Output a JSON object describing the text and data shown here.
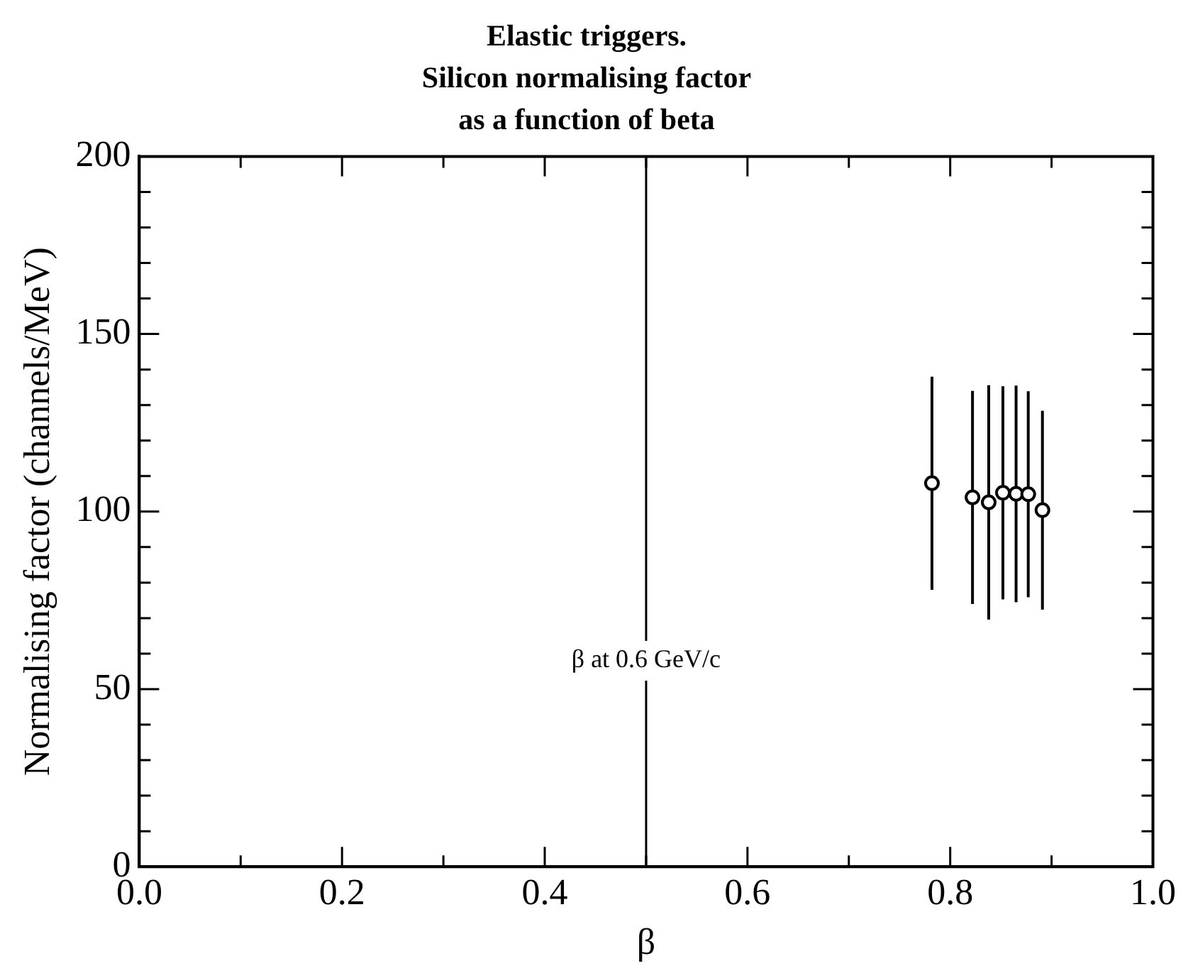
{
  "chart_data": {
    "type": "scatter",
    "title": "Elastic triggers.\nSilicon normalising factor\nas a function of beta",
    "xlabel": "β",
    "ylabel": "Normalising factor (channels/MeV)",
    "x": [
      0.782,
      0.822,
      0.838,
      0.852,
      0.865,
      0.877,
      0.891
    ],
    "series": [
      {
        "color": "#000000",
        "values": [
          108,
          104,
          102.6,
          105.3,
          105,
          104.9,
          100.4
        ],
        "errors": [
          30,
          30,
          33,
          30,
          30.5,
          29,
          28
        ]
      }
    ],
    "xlim": [
      0,
      1
    ],
    "ylim": [
      0,
      200
    ],
    "xticks": [
      {
        "value": 0,
        "label": "0.0"
      },
      {
        "value": 0.1,
        "label": null
      },
      0.2,
      {
        "value": 0.3,
        "label": null
      },
      0.4,
      {
        "value": 0.5,
        "label": null
      },
      0.6,
      {
        "value": 0.7,
        "label": null
      },
      0.8,
      {
        "value": 0.9,
        "label": null
      },
      {
        "value": 1,
        "label": "1.0"
      }
    ],
    "yticks": [
      0,
      {
        "value": 10,
        "label": null
      },
      {
        "value": 20,
        "label": null
      },
      {
        "value": 30,
        "label": null
      },
      {
        "value": 40,
        "label": null
      },
      50,
      {
        "value": 60,
        "label": null
      },
      {
        "value": 70,
        "label": null
      },
      {
        "value": 80,
        "label": null
      },
      {
        "value": 90,
        "label": null
      },
      100,
      {
        "value": 110,
        "label": null
      },
      {
        "value": 120,
        "label": null
      },
      {
        "value": 130,
        "label": null
      },
      {
        "value": 140,
        "label": null
      },
      150,
      {
        "value": 160,
        "label": null
      },
      {
        "value": 170,
        "label": null
      },
      {
        "value": 180,
        "label": null
      },
      {
        "value": 190,
        "label": null
      },
      200
    ],
    "ref_lines": [
      {
        "axis": "x",
        "value": 0.5,
        "label": "β at 0.6 GeV/c",
        "color": "#000000"
      }
    ],
    "marker": "circle",
    "grid": false,
    "legend": false
  }
}
